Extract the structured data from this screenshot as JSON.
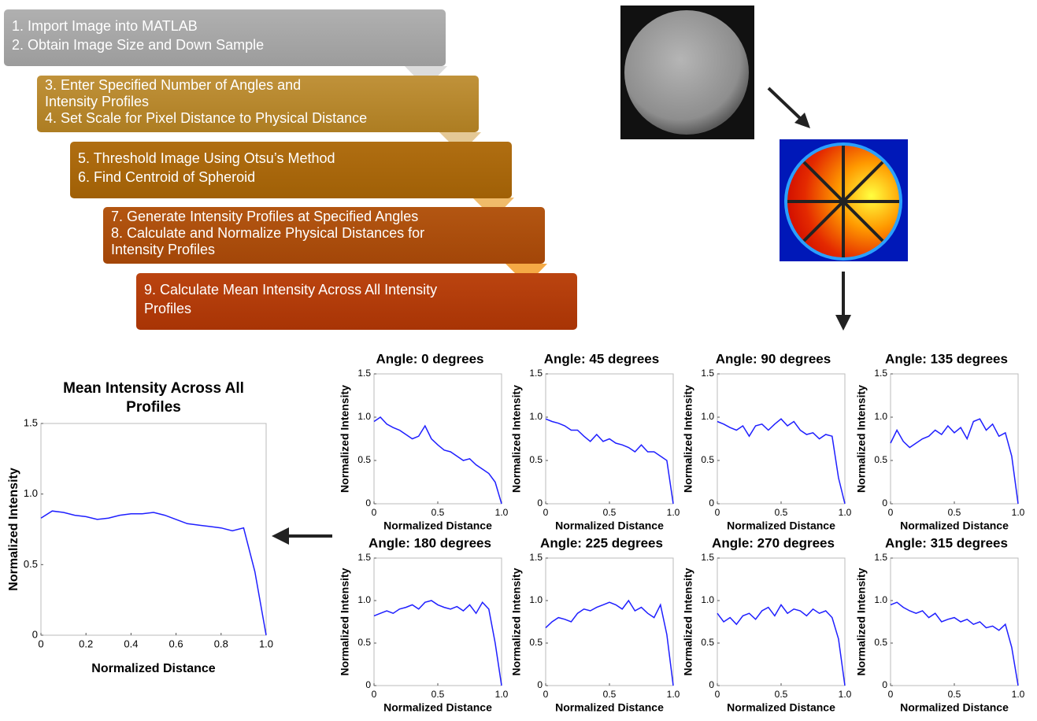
{
  "flowchart": [
    {
      "lines": [
        "1. Import Image into MATLAB",
        "2. Obtain Image Size and Down Sample"
      ]
    },
    {
      "lines": [
        "3. Enter Specified Number of Angles and",
        "Intensity Profiles",
        "4. Set Scale for Pixel Distance to Physical Distance"
      ]
    },
    {
      "lines": [
        "5. Threshold Image Using Otsu’s Method",
        "6. Find Centroid of Spheroid"
      ]
    },
    {
      "lines": [
        "7. Generate Intensity Profiles at Specified Angles",
        "8. Calculate and Normalize Physical Distances for",
        "Intensity Profiles"
      ]
    },
    {
      "lines": [
        "9. Calculate Mean Intensity Across All Intensity",
        "Profiles"
      ]
    }
  ],
  "chart_data": [
    {
      "type": "line",
      "title": "Mean Intensity Across All Profiles",
      "xlabel": "Normalized Distance",
      "ylabel": "Normalized Intensity",
      "x": [
        0,
        0.05,
        0.1,
        0.15,
        0.2,
        0.25,
        0.3,
        0.35,
        0.4,
        0.45,
        0.5,
        0.55,
        0.6,
        0.65,
        0.7,
        0.75,
        0.8,
        0.85,
        0.9,
        0.95,
        1
      ],
      "series": [
        {
          "color": "#1f1fff",
          "values": [
            0.83,
            0.88,
            0.87,
            0.85,
            0.84,
            0.82,
            0.83,
            0.85,
            0.86,
            0.86,
            0.87,
            0.85,
            0.82,
            0.79,
            0.78,
            0.77,
            0.76,
            0.74,
            0.76,
            0.45,
            0
          ]
        }
      ],
      "xlim": [
        0,
        1
      ],
      "ylim": [
        0,
        1.5
      ],
      "xticks": [
        0,
        0.2,
        0.4,
        0.6,
        0.8,
        {
          "value": 1,
          "label": "1.0"
        }
      ],
      "yticks": [
        0,
        0.5,
        {
          "value": 1,
          "label": "1.0"
        },
        1.5
      ]
    },
    {
      "type": "line",
      "title": "Angle: 0 degrees",
      "xlabel": "Normalized Distance",
      "ylabel": "Normalized Intensity",
      "x": [
        0,
        0.05,
        0.1,
        0.15,
        0.2,
        0.25,
        0.3,
        0.35,
        0.4,
        0.45,
        0.5,
        0.55,
        0.6,
        0.65,
        0.7,
        0.75,
        0.8,
        0.85,
        0.9,
        0.95,
        1
      ],
      "series": [
        {
          "color": "#1f1fff",
          "values": [
            0.95,
            1.0,
            0.92,
            0.88,
            0.85,
            0.8,
            0.75,
            0.78,
            0.9,
            0.75,
            0.68,
            0.62,
            0.6,
            0.55,
            0.5,
            0.52,
            0.45,
            0.4,
            0.35,
            0.25,
            0
          ]
        }
      ],
      "xlim": [
        0,
        1
      ],
      "ylim": [
        0,
        1.5
      ],
      "xticks": [
        0,
        0.5,
        {
          "value": 1,
          "label": "1.0"
        }
      ],
      "yticks": [
        0,
        0.5,
        {
          "value": 1,
          "label": "1.0"
        },
        1.5
      ]
    },
    {
      "type": "line",
      "title": "Angle: 45 degrees",
      "xlabel": "Normalized Distance",
      "ylabel": "Normalized Intensity",
      "x": [
        0,
        0.05,
        0.1,
        0.15,
        0.2,
        0.25,
        0.3,
        0.35,
        0.4,
        0.45,
        0.5,
        0.55,
        0.6,
        0.65,
        0.7,
        0.75,
        0.8,
        0.85,
        0.9,
        0.95,
        1
      ],
      "series": [
        {
          "color": "#1f1fff",
          "values": [
            0.98,
            0.95,
            0.93,
            0.9,
            0.85,
            0.85,
            0.78,
            0.72,
            0.8,
            0.72,
            0.75,
            0.7,
            0.68,
            0.65,
            0.6,
            0.68,
            0.6,
            0.6,
            0.55,
            0.5,
            0
          ]
        }
      ],
      "xlim": [
        0,
        1
      ],
      "ylim": [
        0,
        1.5
      ],
      "xticks": [
        0,
        0.5,
        {
          "value": 1,
          "label": "1.0"
        }
      ],
      "yticks": [
        0,
        0.5,
        {
          "value": 1,
          "label": "1.0"
        },
        1.5
      ]
    },
    {
      "type": "line",
      "title": "Angle: 90 degrees",
      "xlabel": "Normalized Distance",
      "ylabel": "Normalized Intensity",
      "x": [
        0,
        0.05,
        0.1,
        0.15,
        0.2,
        0.25,
        0.3,
        0.35,
        0.4,
        0.45,
        0.5,
        0.55,
        0.6,
        0.65,
        0.7,
        0.75,
        0.8,
        0.85,
        0.9,
        0.95,
        1
      ],
      "series": [
        {
          "color": "#1f1fff",
          "values": [
            0.95,
            0.92,
            0.88,
            0.85,
            0.9,
            0.78,
            0.9,
            0.92,
            0.85,
            0.92,
            0.98,
            0.9,
            0.95,
            0.85,
            0.8,
            0.82,
            0.75,
            0.8,
            0.78,
            0.3,
            0
          ]
        }
      ],
      "xlim": [
        0,
        1
      ],
      "ylim": [
        0,
        1.5
      ],
      "xticks": [
        0,
        0.5,
        {
          "value": 1,
          "label": "1.0"
        }
      ],
      "yticks": [
        0,
        0.5,
        {
          "value": 1,
          "label": "1.0"
        },
        1.5
      ]
    },
    {
      "type": "line",
      "title": "Angle: 135 degrees",
      "xlabel": "Normalized Distance",
      "ylabel": "Normalized Intensity",
      "x": [
        0,
        0.05,
        0.1,
        0.15,
        0.2,
        0.25,
        0.3,
        0.35,
        0.4,
        0.45,
        0.5,
        0.55,
        0.6,
        0.65,
        0.7,
        0.75,
        0.8,
        0.85,
        0.9,
        0.95,
        1
      ],
      "series": [
        {
          "color": "#1f1fff",
          "values": [
            0.7,
            0.85,
            0.72,
            0.65,
            0.7,
            0.75,
            0.78,
            0.85,
            0.8,
            0.9,
            0.82,
            0.88,
            0.75,
            0.95,
            0.98,
            0.85,
            0.92,
            0.78,
            0.82,
            0.55,
            0
          ]
        }
      ],
      "xlim": [
        0,
        1
      ],
      "ylim": [
        0,
        1.5
      ],
      "xticks": [
        0,
        0.5,
        {
          "value": 1,
          "label": "1.0"
        }
      ],
      "yticks": [
        0,
        0.5,
        {
          "value": 1,
          "label": "1.0"
        },
        1.5
      ]
    },
    {
      "type": "line",
      "title": "Angle: 180 degrees",
      "xlabel": "Normalized Distance",
      "ylabel": "Normalized Intensity",
      "x": [
        0,
        0.05,
        0.1,
        0.15,
        0.2,
        0.25,
        0.3,
        0.35,
        0.4,
        0.45,
        0.5,
        0.55,
        0.6,
        0.65,
        0.7,
        0.75,
        0.8,
        0.85,
        0.9,
        0.95,
        1
      ],
      "series": [
        {
          "color": "#1f1fff",
          "values": [
            0.82,
            0.85,
            0.88,
            0.85,
            0.9,
            0.92,
            0.95,
            0.9,
            0.98,
            1.0,
            0.95,
            0.92,
            0.9,
            0.93,
            0.88,
            0.95,
            0.85,
            0.98,
            0.9,
            0.5,
            0
          ]
        }
      ],
      "xlim": [
        0,
        1
      ],
      "ylim": [
        0,
        1.5
      ],
      "xticks": [
        0,
        0.5,
        {
          "value": 1,
          "label": "1.0"
        }
      ],
      "yticks": [
        0,
        0.5,
        {
          "value": 1,
          "label": "1.0"
        },
        1.5
      ]
    },
    {
      "type": "line",
      "title": "Angle: 225 degrees",
      "xlabel": "Normalized Distance",
      "ylabel": "Normalized Intensity",
      "x": [
        0,
        0.05,
        0.1,
        0.15,
        0.2,
        0.25,
        0.3,
        0.35,
        0.4,
        0.45,
        0.5,
        0.55,
        0.6,
        0.65,
        0.7,
        0.75,
        0.8,
        0.85,
        0.9,
        0.95,
        1
      ],
      "series": [
        {
          "color": "#1f1fff",
          "values": [
            0.68,
            0.75,
            0.8,
            0.78,
            0.75,
            0.85,
            0.9,
            0.88,
            0.92,
            0.95,
            0.98,
            0.95,
            0.9,
            1.0,
            0.88,
            0.92,
            0.85,
            0.8,
            0.95,
            0.6,
            0
          ]
        }
      ],
      "xlim": [
        0,
        1
      ],
      "ylim": [
        0,
        1.5
      ],
      "xticks": [
        0,
        0.5,
        {
          "value": 1,
          "label": "1.0"
        }
      ],
      "yticks": [
        0,
        0.5,
        {
          "value": 1,
          "label": "1.0"
        },
        1.5
      ]
    },
    {
      "type": "line",
      "title": "Angle: 270 degrees",
      "xlabel": "Normalized Distance",
      "ylabel": "Normalized Intensity",
      "x": [
        0,
        0.05,
        0.1,
        0.15,
        0.2,
        0.25,
        0.3,
        0.35,
        0.4,
        0.45,
        0.5,
        0.55,
        0.6,
        0.65,
        0.7,
        0.75,
        0.8,
        0.85,
        0.9,
        0.95,
        1
      ],
      "series": [
        {
          "color": "#1f1fff",
          "values": [
            0.85,
            0.75,
            0.8,
            0.72,
            0.82,
            0.85,
            0.78,
            0.88,
            0.92,
            0.82,
            0.95,
            0.85,
            0.9,
            0.88,
            0.82,
            0.9,
            0.85,
            0.88,
            0.8,
            0.55,
            0
          ]
        }
      ],
      "xlim": [
        0,
        1
      ],
      "ylim": [
        0,
        1.5
      ],
      "xticks": [
        0,
        0.5,
        {
          "value": 1,
          "label": "1.0"
        }
      ],
      "yticks": [
        0,
        0.5,
        {
          "value": 1,
          "label": "1.0"
        },
        1.5
      ]
    },
    {
      "type": "line",
      "title": "Angle: 315 degrees",
      "xlabel": "Normalized Distance",
      "ylabel": "Normalized Intensity",
      "x": [
        0,
        0.05,
        0.1,
        0.15,
        0.2,
        0.25,
        0.3,
        0.35,
        0.4,
        0.45,
        0.5,
        0.55,
        0.6,
        0.65,
        0.7,
        0.75,
        0.8,
        0.85,
        0.9,
        0.95,
        1
      ],
      "series": [
        {
          "color": "#1f1fff",
          "values": [
            0.95,
            0.98,
            0.92,
            0.88,
            0.85,
            0.88,
            0.8,
            0.85,
            0.75,
            0.78,
            0.8,
            0.75,
            0.78,
            0.72,
            0.75,
            0.68,
            0.7,
            0.65,
            0.72,
            0.45,
            0
          ]
        }
      ],
      "xlim": [
        0,
        1
      ],
      "ylim": [
        0,
        1.5
      ],
      "xticks": [
        0,
        0.5,
        {
          "value": 1,
          "label": "1.0"
        }
      ],
      "yticks": [
        0,
        0.5,
        {
          "value": 1,
          "label": "1.0"
        },
        1.5
      ]
    }
  ]
}
